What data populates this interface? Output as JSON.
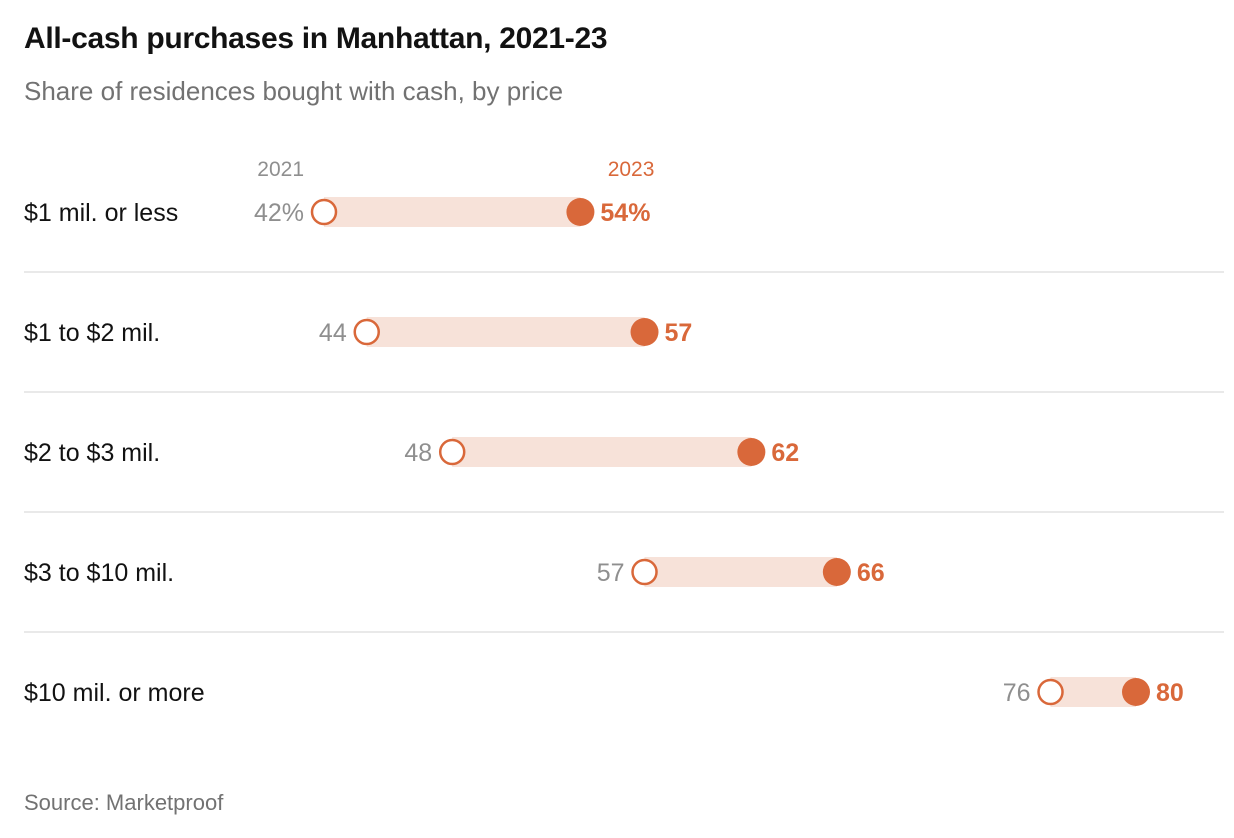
{
  "title": "All-cash purchases in Manhattan, 2021-23",
  "subtitle": "Share of residences bought with cash, by price",
  "source": "Source: Marketproof",
  "colors": {
    "accent": "#d9683a",
    "band": "#f7e2d9",
    "muted": "#8f8f8f",
    "rule": "#e2e2e2"
  },
  "chart_data": {
    "type": "dot-plot",
    "series": [
      {
        "name": "2021",
        "values": [
          42,
          44,
          48,
          57,
          76
        ]
      },
      {
        "name": "2023",
        "values": [
          54,
          57,
          62,
          66,
          80
        ]
      }
    ],
    "categories": [
      "$1 mil. or less",
      "$1 to $2 mil.",
      "$2 to $3 mil.",
      "$3 to $10 mil.",
      "$10 mil. or more"
    ],
    "value_labels_2021": [
      "42%",
      "44",
      "48",
      "57",
      "76"
    ],
    "value_labels_2023": [
      "54%",
      "57",
      "62",
      "66",
      "80"
    ],
    "xlim": [
      42,
      80
    ],
    "unit": "%"
  }
}
